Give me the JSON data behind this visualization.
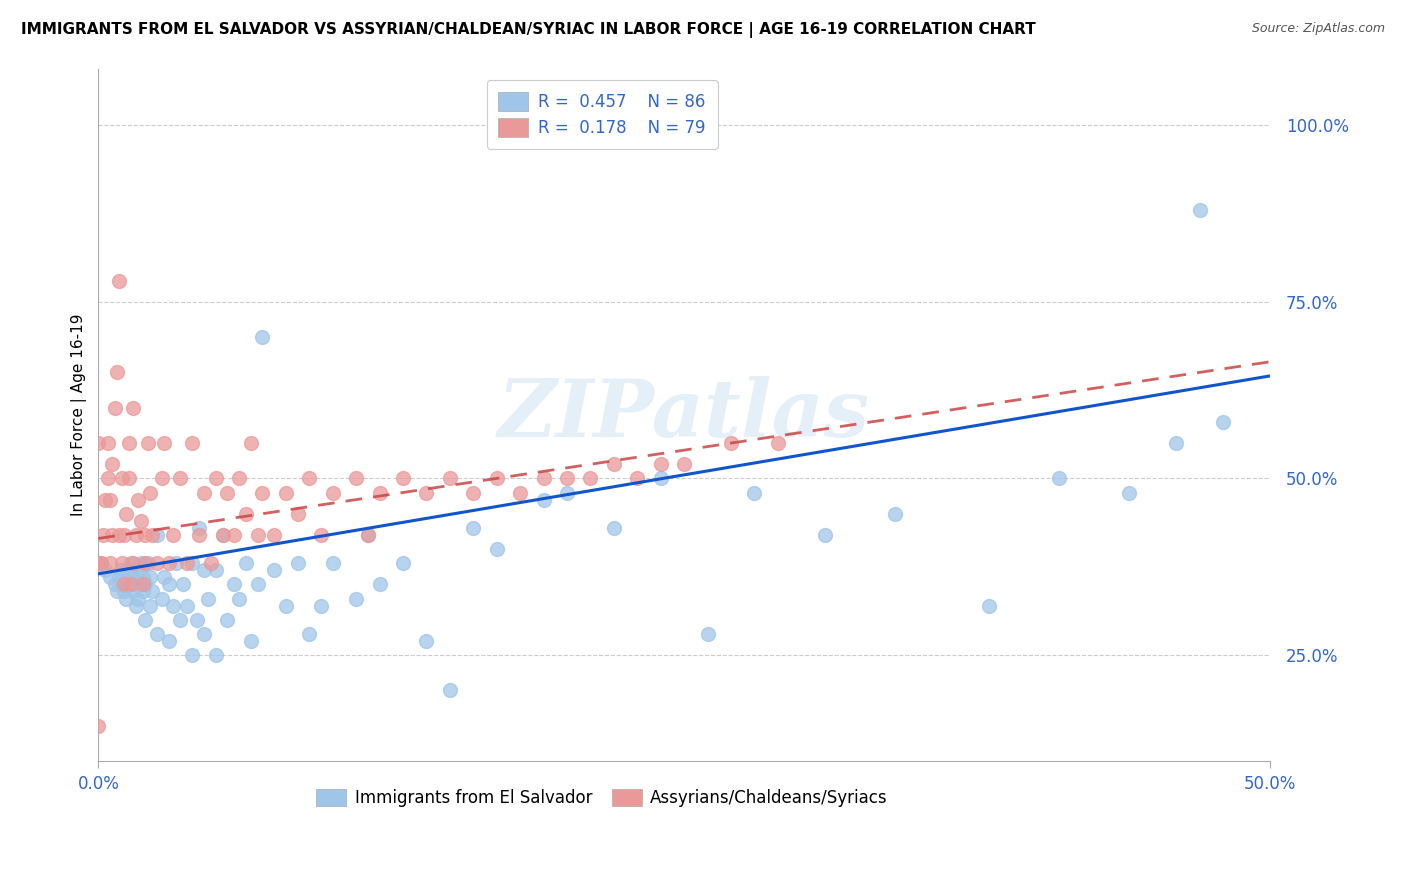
{
  "title": "IMMIGRANTS FROM EL SALVADOR VS ASSYRIAN/CHALDEAN/SYRIAC IN LABOR FORCE | AGE 16-19 CORRELATION CHART",
  "source": "Source: ZipAtlas.com",
  "ylabel": "In Labor Force | Age 16-19",
  "xlim": [
    0.0,
    0.5
  ],
  "ylim": [
    0.1,
    1.08
  ],
  "blue_color": "#9fc5e8",
  "pink_color": "#ea9999",
  "line_blue": "#1155cc",
  "line_pink": "#cc4444",
  "watermark": "ZIPatlas",
  "blue_scatter_x": [
    0.001,
    0.003,
    0.005,
    0.007,
    0.008,
    0.009,
    0.01,
    0.01,
    0.011,
    0.012,
    0.012,
    0.013,
    0.014,
    0.014,
    0.015,
    0.015,
    0.016,
    0.016,
    0.017,
    0.017,
    0.018,
    0.018,
    0.019,
    0.019,
    0.02,
    0.02,
    0.021,
    0.022,
    0.022,
    0.023,
    0.025,
    0.025,
    0.027,
    0.028,
    0.03,
    0.03,
    0.032,
    0.033,
    0.035,
    0.036,
    0.038,
    0.04,
    0.04,
    0.042,
    0.043,
    0.045,
    0.045,
    0.047,
    0.05,
    0.05,
    0.053,
    0.055,
    0.058,
    0.06,
    0.063,
    0.065,
    0.068,
    0.07,
    0.075,
    0.08,
    0.085,
    0.09,
    0.095,
    0.1,
    0.11,
    0.115,
    0.12,
    0.13,
    0.14,
    0.15,
    0.16,
    0.17,
    0.19,
    0.2,
    0.22,
    0.24,
    0.26,
    0.28,
    0.31,
    0.34,
    0.38,
    0.41,
    0.44,
    0.46,
    0.47,
    0.48
  ],
  "blue_scatter_y": [
    0.38,
    0.37,
    0.36,
    0.35,
    0.34,
    0.36,
    0.35,
    0.37,
    0.34,
    0.33,
    0.36,
    0.35,
    0.37,
    0.38,
    0.34,
    0.36,
    0.32,
    0.35,
    0.33,
    0.37,
    0.35,
    0.38,
    0.34,
    0.36,
    0.3,
    0.35,
    0.38,
    0.32,
    0.36,
    0.34,
    0.28,
    0.42,
    0.33,
    0.36,
    0.27,
    0.35,
    0.32,
    0.38,
    0.3,
    0.35,
    0.32,
    0.25,
    0.38,
    0.3,
    0.43,
    0.28,
    0.37,
    0.33,
    0.25,
    0.37,
    0.42,
    0.3,
    0.35,
    0.33,
    0.38,
    0.27,
    0.35,
    0.7,
    0.37,
    0.32,
    0.38,
    0.28,
    0.32,
    0.38,
    0.33,
    0.42,
    0.35,
    0.38,
    0.27,
    0.2,
    0.43,
    0.4,
    0.47,
    0.48,
    0.43,
    0.5,
    0.28,
    0.48,
    0.42,
    0.45,
    0.32,
    0.5,
    0.48,
    0.55,
    0.88,
    0.58
  ],
  "pink_scatter_x": [
    0.0,
    0.0,
    0.0,
    0.001,
    0.002,
    0.003,
    0.004,
    0.004,
    0.005,
    0.005,
    0.006,
    0.006,
    0.007,
    0.008,
    0.009,
    0.009,
    0.01,
    0.01,
    0.011,
    0.011,
    0.012,
    0.013,
    0.013,
    0.014,
    0.015,
    0.015,
    0.016,
    0.017,
    0.018,
    0.019,
    0.02,
    0.02,
    0.021,
    0.022,
    0.023,
    0.025,
    0.027,
    0.028,
    0.03,
    0.032,
    0.035,
    0.038,
    0.04,
    0.043,
    0.045,
    0.048,
    0.05,
    0.053,
    0.055,
    0.058,
    0.06,
    0.063,
    0.065,
    0.068,
    0.07,
    0.075,
    0.08,
    0.085,
    0.09,
    0.095,
    0.1,
    0.11,
    0.115,
    0.12,
    0.13,
    0.14,
    0.15,
    0.16,
    0.17,
    0.18,
    0.19,
    0.2,
    0.21,
    0.22,
    0.23,
    0.24,
    0.25,
    0.27,
    0.29
  ],
  "pink_scatter_y": [
    0.38,
    0.55,
    0.15,
    0.38,
    0.42,
    0.47,
    0.5,
    0.55,
    0.38,
    0.47,
    0.42,
    0.52,
    0.6,
    0.65,
    0.78,
    0.42,
    0.38,
    0.5,
    0.35,
    0.42,
    0.45,
    0.5,
    0.55,
    0.35,
    0.38,
    0.6,
    0.42,
    0.47,
    0.44,
    0.35,
    0.38,
    0.42,
    0.55,
    0.48,
    0.42,
    0.38,
    0.5,
    0.55,
    0.38,
    0.42,
    0.5,
    0.38,
    0.55,
    0.42,
    0.48,
    0.38,
    0.5,
    0.42,
    0.48,
    0.42,
    0.5,
    0.45,
    0.55,
    0.42,
    0.48,
    0.42,
    0.48,
    0.45,
    0.5,
    0.42,
    0.48,
    0.5,
    0.42,
    0.48,
    0.5,
    0.48,
    0.5,
    0.48,
    0.5,
    0.48,
    0.5,
    0.5,
    0.5,
    0.52,
    0.5,
    0.52,
    0.52,
    0.55,
    0.55
  ],
  "blue_line_x": [
    0.0,
    0.5
  ],
  "blue_line_y": [
    0.365,
    0.645
  ],
  "pink_line_x": [
    0.0,
    0.5
  ],
  "pink_line_y": [
    0.415,
    0.665
  ]
}
